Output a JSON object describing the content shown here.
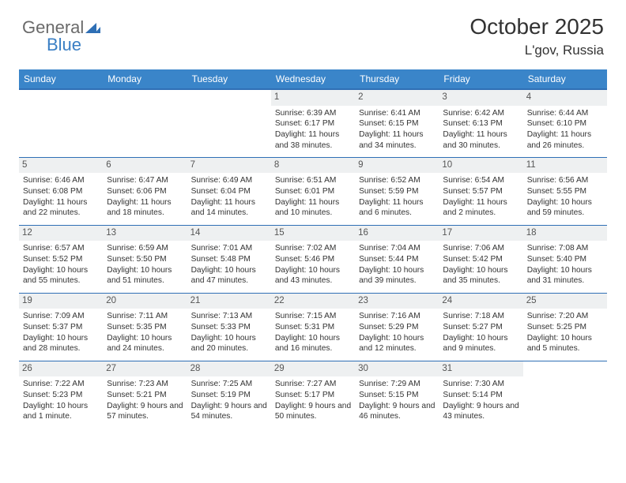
{
  "brand": {
    "word1": "General",
    "word2": "Blue"
  },
  "title": "October 2025",
  "location": "L'gov, Russia",
  "colors": {
    "header_bg": "#3a85c9",
    "border": "#2f6fb5",
    "daynum_bg": "#eef0f1",
    "text": "#333333",
    "logo_gray": "#6a6a6a",
    "logo_blue": "#3a7fc4"
  },
  "days_of_week": [
    "Sunday",
    "Monday",
    "Tuesday",
    "Wednesday",
    "Thursday",
    "Friday",
    "Saturday"
  ],
  "weeks": [
    [
      null,
      null,
      null,
      {
        "n": "1",
        "sr": "6:39 AM",
        "ss": "6:17 PM",
        "dl": "11 hours and 38 minutes."
      },
      {
        "n": "2",
        "sr": "6:41 AM",
        "ss": "6:15 PM",
        "dl": "11 hours and 34 minutes."
      },
      {
        "n": "3",
        "sr": "6:42 AM",
        "ss": "6:13 PM",
        "dl": "11 hours and 30 minutes."
      },
      {
        "n": "4",
        "sr": "6:44 AM",
        "ss": "6:10 PM",
        "dl": "11 hours and 26 minutes."
      }
    ],
    [
      {
        "n": "5",
        "sr": "6:46 AM",
        "ss": "6:08 PM",
        "dl": "11 hours and 22 minutes."
      },
      {
        "n": "6",
        "sr": "6:47 AM",
        "ss": "6:06 PM",
        "dl": "11 hours and 18 minutes."
      },
      {
        "n": "7",
        "sr": "6:49 AM",
        "ss": "6:04 PM",
        "dl": "11 hours and 14 minutes."
      },
      {
        "n": "8",
        "sr": "6:51 AM",
        "ss": "6:01 PM",
        "dl": "11 hours and 10 minutes."
      },
      {
        "n": "9",
        "sr": "6:52 AM",
        "ss": "5:59 PM",
        "dl": "11 hours and 6 minutes."
      },
      {
        "n": "10",
        "sr": "6:54 AM",
        "ss": "5:57 PM",
        "dl": "11 hours and 2 minutes."
      },
      {
        "n": "11",
        "sr": "6:56 AM",
        "ss": "5:55 PM",
        "dl": "10 hours and 59 minutes."
      }
    ],
    [
      {
        "n": "12",
        "sr": "6:57 AM",
        "ss": "5:52 PM",
        "dl": "10 hours and 55 minutes."
      },
      {
        "n": "13",
        "sr": "6:59 AM",
        "ss": "5:50 PM",
        "dl": "10 hours and 51 minutes."
      },
      {
        "n": "14",
        "sr": "7:01 AM",
        "ss": "5:48 PM",
        "dl": "10 hours and 47 minutes."
      },
      {
        "n": "15",
        "sr": "7:02 AM",
        "ss": "5:46 PM",
        "dl": "10 hours and 43 minutes."
      },
      {
        "n": "16",
        "sr": "7:04 AM",
        "ss": "5:44 PM",
        "dl": "10 hours and 39 minutes."
      },
      {
        "n": "17",
        "sr": "7:06 AM",
        "ss": "5:42 PM",
        "dl": "10 hours and 35 minutes."
      },
      {
        "n": "18",
        "sr": "7:08 AM",
        "ss": "5:40 PM",
        "dl": "10 hours and 31 minutes."
      }
    ],
    [
      {
        "n": "19",
        "sr": "7:09 AM",
        "ss": "5:37 PM",
        "dl": "10 hours and 28 minutes."
      },
      {
        "n": "20",
        "sr": "7:11 AM",
        "ss": "5:35 PM",
        "dl": "10 hours and 24 minutes."
      },
      {
        "n": "21",
        "sr": "7:13 AM",
        "ss": "5:33 PM",
        "dl": "10 hours and 20 minutes."
      },
      {
        "n": "22",
        "sr": "7:15 AM",
        "ss": "5:31 PM",
        "dl": "10 hours and 16 minutes."
      },
      {
        "n": "23",
        "sr": "7:16 AM",
        "ss": "5:29 PM",
        "dl": "10 hours and 12 minutes."
      },
      {
        "n": "24",
        "sr": "7:18 AM",
        "ss": "5:27 PM",
        "dl": "10 hours and 9 minutes."
      },
      {
        "n": "25",
        "sr": "7:20 AM",
        "ss": "5:25 PM",
        "dl": "10 hours and 5 minutes."
      }
    ],
    [
      {
        "n": "26",
        "sr": "7:22 AM",
        "ss": "5:23 PM",
        "dl": "10 hours and 1 minute."
      },
      {
        "n": "27",
        "sr": "7:23 AM",
        "ss": "5:21 PM",
        "dl": "9 hours and 57 minutes."
      },
      {
        "n": "28",
        "sr": "7:25 AM",
        "ss": "5:19 PM",
        "dl": "9 hours and 54 minutes."
      },
      {
        "n": "29",
        "sr": "7:27 AM",
        "ss": "5:17 PM",
        "dl": "9 hours and 50 minutes."
      },
      {
        "n": "30",
        "sr": "7:29 AM",
        "ss": "5:15 PM",
        "dl": "9 hours and 46 minutes."
      },
      {
        "n": "31",
        "sr": "7:30 AM",
        "ss": "5:14 PM",
        "dl": "9 hours and 43 minutes."
      },
      null
    ]
  ],
  "labels": {
    "sunrise": "Sunrise: ",
    "sunset": "Sunset: ",
    "daylight": "Daylight: "
  }
}
